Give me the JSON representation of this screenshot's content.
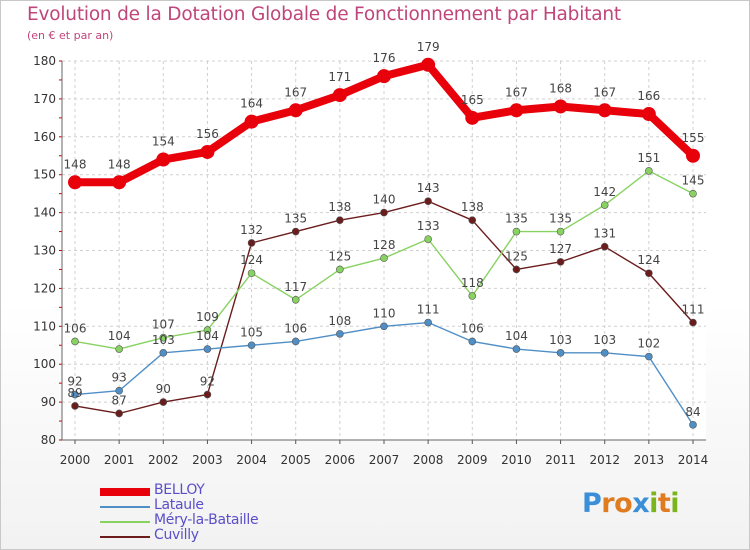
{
  "title": "Evolution de la Dotation Globale de Fonctionnement par Habitant",
  "subtitle": "(en € et par an)",
  "logo": {
    "letters": [
      "P",
      "r",
      "o",
      "x",
      "i",
      "t",
      "i"
    ],
    "colors": [
      "#3a8fd8",
      "#e07c1f",
      "#e07c1f",
      "#3a8fd8",
      "#7ab51d",
      "#e07c1f",
      "#7ab51d"
    ]
  },
  "chart_data": {
    "type": "line",
    "title": "Evolution de la Dotation Globale de Fonctionnement par Habitant",
    "ylabel": "(en € et par an)",
    "x": [
      "2000",
      "2001",
      "2002",
      "2003",
      "2004",
      "2005",
      "2006",
      "2007",
      "2008",
      "2009",
      "2010",
      "2011",
      "2012",
      "2013",
      "2014"
    ],
    "ylim": [
      80,
      180
    ],
    "yticks": [
      "80",
      "90",
      "100",
      "110",
      "120",
      "130",
      "140",
      "150",
      "160",
      "170",
      "180"
    ],
    "grid": true,
    "series": [
      {
        "name": "BELLOY",
        "color": "#e8000b",
        "values": [
          148,
          148,
          154,
          156,
          164,
          167,
          171,
          176,
          179,
          165,
          167,
          168,
          167,
          166,
          155
        ]
      },
      {
        "name": "Lataule",
        "color": "#4f8fc6",
        "values": [
          92,
          93,
          103,
          104,
          105,
          106,
          108,
          110,
          111,
          106,
          104,
          103,
          103,
          102,
          84
        ]
      },
      {
        "name": "Méry-la-Bataille",
        "color": "#88d262",
        "values": [
          106,
          104,
          107,
          109,
          124,
          117,
          125,
          128,
          133,
          118,
          135,
          135,
          142,
          151,
          145
        ]
      },
      {
        "name": "Cuvilly",
        "color": "#6b1d1d",
        "values": [
          89,
          87,
          90,
          92,
          132,
          135,
          138,
          140,
          143,
          138,
          125,
          127,
          131,
          124,
          111
        ]
      }
    ]
  }
}
